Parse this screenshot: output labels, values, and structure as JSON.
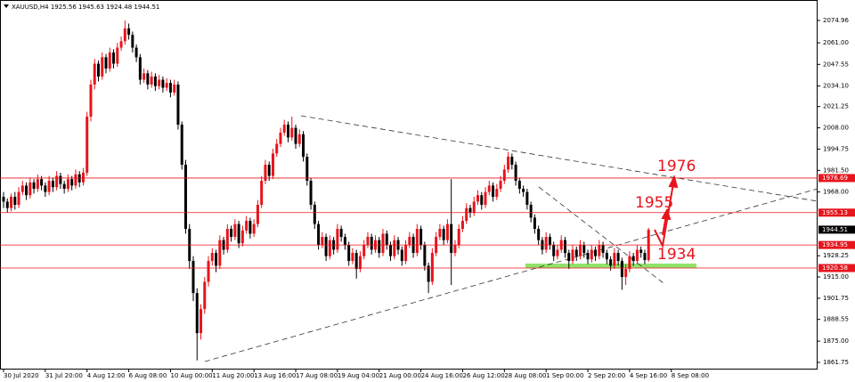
{
  "chart_data": {
    "type": "candlestick",
    "symbol": "XAUUSD,H4",
    "up_color": "#e8141c",
    "down_color": "#000000",
    "ylim": [
      1857.3,
      2087.7
    ],
    "yticks": [
      2074.96,
      {
        "value": 2061,
        "label": "2061.00"
      },
      2047.55,
      {
        "value": 2034.1,
        "label": "2034.10"
      },
      2021.25,
      {
        "value": 2008,
        "label": "2008.00"
      },
      1994.75,
      {
        "value": 1981.5,
        "label": "1981.50"
      },
      {
        "value": 1968,
        "label": "1968.00"
      },
      1928.25,
      {
        "value": 1915,
        "label": "1915.00"
      },
      1901.75,
      1888.55,
      {
        "value": 1875,
        "label": "1875.00"
      },
      1861.75
    ],
    "levels": [
      {
        "value": 1976.69,
        "color": "#e8141c"
      },
      {
        "value": 1955.13,
        "color": "#e8141c"
      },
      {
        "value": 1934.95,
        "color": "#e8141c"
      },
      {
        "value": 1920.58,
        "color": "#e8141c"
      }
    ],
    "annotations": [
      "1976",
      "1955",
      "1934"
    ],
    "categories": [
      "30 Jul 2020",
      null,
      null,
      null,
      null,
      null,
      null,
      null,
      null,
      null,
      null,
      "31 Jul 20:00",
      null,
      null,
      null,
      null,
      null,
      null,
      null,
      null,
      null,
      null,
      "4 Aug 12:00",
      null,
      null,
      null,
      null,
      null,
      null,
      null,
      null,
      null,
      null,
      "6 Aug 08:00",
      null,
      null,
      null,
      null,
      null,
      null,
      null,
      null,
      null,
      null,
      "10 Aug 00:00",
      null,
      null,
      null,
      null,
      null,
      null,
      null,
      null,
      null,
      null,
      "11 Aug 20:00",
      null,
      null,
      null,
      null,
      null,
      null,
      null,
      null,
      null,
      null,
      "13 Aug 16:00",
      null,
      null,
      null,
      null,
      null,
      null,
      null,
      null,
      null,
      null,
      "17 Aug 08:00",
      null,
      null,
      null,
      null,
      null,
      null,
      null,
      null,
      null,
      null,
      "19 Aug 04:00",
      null,
      null,
      null,
      null,
      null,
      null,
      null,
      null,
      null,
      null,
      "21 Aug 00:00",
      null,
      null,
      null,
      null,
      null,
      null,
      null,
      null,
      null,
      null,
      "24 Aug 16:00",
      null,
      null,
      null,
      null,
      null,
      null,
      null,
      null,
      null,
      null,
      "26 Aug 12:00",
      null,
      null,
      null,
      null,
      null,
      null,
      null,
      null,
      null,
      null,
      "28 Aug 08:00",
      null,
      null,
      null,
      null,
      null,
      null,
      null,
      null,
      null,
      null,
      "1 Sep 00:00",
      null,
      null,
      null,
      null,
      null,
      null,
      null,
      null,
      null,
      null,
      "2 Sep 20:00",
      null,
      null,
      null,
      null,
      null,
      null,
      null,
      null,
      null,
      null,
      "4 Sep 16:00",
      null,
      null,
      null,
      null,
      null,
      null,
      null,
      null,
      null,
      null,
      "8 Sep 08:00"
    ],
    "values": [
      [
        1965,
        1968,
        1958,
        1962
      ],
      [
        1962,
        1964,
        1955,
        1958
      ],
      [
        1958,
        1967,
        1956,
        1965
      ],
      [
        1965,
        1968,
        1957,
        1960
      ],
      [
        1960,
        1971,
        1958,
        1968
      ],
      [
        1968,
        1975,
        1966,
        1972
      ],
      [
        1972,
        1974,
        1963,
        1966
      ],
      [
        1966,
        1977,
        1964,
        1974
      ],
      [
        1974,
        1976,
        1967,
        1970
      ],
      [
        1970,
        1979,
        1968,
        1976
      ],
      [
        1976,
        1978,
        1969,
        1972
      ],
      [
        1972,
        1974,
        1965,
        1968
      ],
      [
        1968,
        1978,
        1966,
        1975
      ],
      [
        1975,
        1977,
        1968,
        1971
      ],
      [
        1971,
        1981,
        1969,
        1978
      ],
      [
        1978,
        1980,
        1970,
        1973
      ],
      [
        1973,
        1975,
        1967,
        1970
      ],
      [
        1970,
        1979,
        1968,
        1976
      ],
      [
        1976,
        1978,
        1969,
        1972
      ],
      [
        1972,
        1982,
        1970,
        1979
      ],
      [
        1979,
        1981,
        1971,
        1974
      ],
      [
        1974,
        1983,
        1972,
        1980
      ],
      [
        1980,
        2018,
        1978,
        2015
      ],
      [
        2015,
        2038,
        2012,
        2035
      ],
      [
        2035,
        2051,
        2032,
        2048
      ],
      [
        2048,
        2050,
        2037,
        2040
      ],
      [
        2040,
        2055,
        2038,
        2052
      ],
      [
        2052,
        2054,
        2042,
        2045
      ],
      [
        2045,
        2058,
        2043,
        2055
      ],
      [
        2055,
        2057,
        2045,
        2048
      ],
      [
        2048,
        2061,
        2046,
        2058
      ],
      [
        2058,
        2065,
        2056,
        2062
      ],
      [
        2062,
        2075,
        2060,
        2070
      ],
      [
        2070,
        2073,
        2063,
        2066
      ],
      [
        2066,
        2068,
        2055,
        2058
      ],
      [
        2058,
        2060,
        2049,
        2052
      ],
      [
        2052,
        2054,
        2035,
        2038
      ],
      [
        2038,
        2045,
        2036,
        2042
      ],
      [
        2042,
        2044,
        2032,
        2035
      ],
      [
        2035,
        2043,
        2033,
        2040
      ],
      [
        2040,
        2042,
        2031,
        2034
      ],
      [
        2034,
        2041,
        2032,
        2038
      ],
      [
        2038,
        2040,
        2030,
        2033
      ],
      [
        2033,
        2039,
        2031,
        2036
      ],
      [
        2036,
        2038,
        2027,
        2030
      ],
      [
        2030,
        2038,
        2028,
        2035
      ],
      [
        2035,
        2037,
        2007,
        2010
      ],
      [
        2010,
        2012,
        1982,
        1985
      ],
      [
        1985,
        1988,
        1942,
        1945
      ],
      [
        1945,
        1948,
        1920,
        1925
      ],
      [
        1925,
        1928,
        1900,
        1905
      ],
      [
        1905,
        1908,
        1863,
        1880
      ],
      [
        1880,
        1898,
        1876,
        1895
      ],
      [
        1895,
        1915,
        1892,
        1912
      ],
      [
        1912,
        1928,
        1909,
        1925
      ],
      [
        1925,
        1933,
        1922,
        1930
      ],
      [
        1930,
        1932,
        1918,
        1922
      ],
      [
        1922,
        1941,
        1920,
        1938
      ],
      [
        1938,
        1940,
        1929,
        1932
      ],
      [
        1932,
        1948,
        1930,
        1945
      ],
      [
        1945,
        1947,
        1937,
        1940
      ],
      [
        1940,
        1951,
        1938,
        1948
      ],
      [
        1948,
        1950,
        1933,
        1936
      ],
      [
        1936,
        1947,
        1934,
        1944
      ],
      [
        1944,
        1953,
        1942,
        1950
      ],
      [
        1950,
        1952,
        1939,
        1942
      ],
      [
        1942,
        1951,
        1940,
        1948
      ],
      [
        1948,
        1963,
        1946,
        1960
      ],
      [
        1960,
        1978,
        1958,
        1975
      ],
      [
        1975,
        1988,
        1973,
        1985
      ],
      [
        1985,
        1987,
        1975,
        1978
      ],
      [
        1978,
        1995,
        1976,
        1992
      ],
      [
        1992,
        2001,
        1990,
        1998
      ],
      [
        1998,
        2008,
        1996,
        2005
      ],
      [
        2005,
        2013,
        2003,
        2010
      ],
      [
        2010,
        2012,
        1999,
        2002
      ],
      [
        2002,
        2015,
        2000,
        2008
      ],
      [
        2008,
        2010,
        1995,
        1998
      ],
      [
        1998,
        2007,
        1996,
        2004
      ],
      [
        2004,
        2006,
        1987,
        1990
      ],
      [
        1990,
        1992,
        1972,
        1975
      ],
      [
        1975,
        1977,
        1957,
        1960
      ],
      [
        1960,
        1962,
        1945,
        1948
      ],
      [
        1948,
        1950,
        1932,
        1935
      ],
      [
        1935,
        1943,
        1933,
        1940
      ],
      [
        1940,
        1942,
        1925,
        1928
      ],
      [
        1928,
        1941,
        1926,
        1938
      ],
      [
        1938,
        1940,
        1929,
        1932
      ],
      [
        1932,
        1948,
        1930,
        1945
      ],
      [
        1945,
        1947,
        1937,
        1940
      ],
      [
        1940,
        1942,
        1932,
        1935
      ],
      [
        1935,
        1937,
        1922,
        1925
      ],
      [
        1925,
        1933,
        1923,
        1930
      ],
      [
        1930,
        1932,
        1914,
        1920
      ],
      [
        1920,
        1931,
        1918,
        1928
      ],
      [
        1928,
        1938,
        1926,
        1935
      ],
      [
        1935,
        1943,
        1933,
        1940
      ],
      [
        1940,
        1942,
        1929,
        1932
      ],
      [
        1932,
        1941,
        1930,
        1938
      ],
      [
        1938,
        1940,
        1927,
        1930
      ],
      [
        1930,
        1945,
        1928,
        1942
      ],
      [
        1942,
        1944,
        1932,
        1935
      ],
      [
        1935,
        1937,
        1925,
        1928
      ],
      [
        1928,
        1941,
        1926,
        1938
      ],
      [
        1938,
        1940,
        1929,
        1932
      ],
      [
        1932,
        1934,
        1922,
        1925
      ],
      [
        1925,
        1938,
        1923,
        1935
      ],
      [
        1935,
        1943,
        1933,
        1940
      ],
      [
        1940,
        1942,
        1927,
        1930
      ],
      [
        1930,
        1948,
        1928,
        1945
      ],
      [
        1945,
        1947,
        1932,
        1935
      ],
      [
        1935,
        1937,
        1919,
        1922
      ],
      [
        1922,
        1924,
        1905,
        1912
      ],
      [
        1912,
        1933,
        1910,
        1930
      ],
      [
        1930,
        1943,
        1928,
        1940
      ],
      [
        1940,
        1948,
        1938,
        1945
      ],
      [
        1945,
        1947,
        1935,
        1938
      ],
      [
        1938,
        1951,
        1936,
        1948
      ],
      [
        1948,
        1976,
        1910,
        1930
      ],
      [
        1930,
        1938,
        1928,
        1935
      ],
      [
        1935,
        1948,
        1933,
        1945
      ],
      [
        1945,
        1953,
        1943,
        1950
      ],
      [
        1950,
        1961,
        1948,
        1958
      ],
      [
        1958,
        1960,
        1952,
        1955
      ],
      [
        1955,
        1965,
        1953,
        1962
      ],
      [
        1962,
        1969,
        1960,
        1966
      ],
      [
        1966,
        1968,
        1957,
        1960
      ],
      [
        1960,
        1971,
        1958,
        1968
      ],
      [
        1968,
        1975,
        1966,
        1972
      ],
      [
        1972,
        1974,
        1962,
        1965
      ],
      [
        1965,
        1973,
        1963,
        1970
      ],
      [
        1970,
        1978,
        1968,
        1975
      ],
      [
        1975,
        1985,
        1973,
        1982
      ],
      [
        1982,
        1993,
        1980,
        1990
      ],
      [
        1990,
        1992,
        1982,
        1985
      ],
      [
        1985,
        1987,
        1972,
        1975
      ],
      [
        1975,
        1977,
        1967,
        1970
      ],
      [
        1970,
        1972,
        1965,
        1968
      ],
      [
        1968,
        1970,
        1957,
        1960
      ],
      [
        1960,
        1962,
        1949,
        1952
      ],
      [
        1952,
        1954,
        1942,
        1945
      ],
      [
        1945,
        1947,
        1935,
        1938
      ],
      [
        1938,
        1940,
        1929,
        1932
      ],
      [
        1932,
        1943,
        1930,
        1940
      ],
      [
        1940,
        1942,
        1932,
        1935
      ],
      [
        1935,
        1937,
        1925,
        1928
      ],
      [
        1928,
        1935,
        1926,
        1932
      ],
      [
        1932,
        1941,
        1930,
        1938
      ],
      [
        1938,
        1940,
        1927,
        1930
      ],
      [
        1930,
        1932,
        1920,
        1925
      ],
      [
        1925,
        1935,
        1923,
        1932
      ],
      [
        1932,
        1934,
        1925,
        1928
      ],
      [
        1928,
        1938,
        1926,
        1935
      ],
      [
        1935,
        1937,
        1927,
        1930
      ],
      [
        1930,
        1932,
        1923,
        1926
      ],
      [
        1926,
        1935,
        1924,
        1932
      ],
      [
        1932,
        1934,
        1925,
        1928
      ],
      [
        1928,
        1938,
        1926,
        1935
      ],
      [
        1935,
        1937,
        1927,
        1930
      ],
      [
        1930,
        1932,
        1923,
        1926
      ],
      [
        1926,
        1928,
        1919,
        1922
      ],
      [
        1922,
        1933,
        1920,
        1930
      ],
      [
        1930,
        1932,
        1922,
        1925
      ],
      [
        1925,
        1927,
        1907,
        1915
      ],
      [
        1915,
        1923,
        1910,
        1920
      ],
      [
        1920,
        1931,
        1918,
        1928
      ],
      [
        1928,
        1930,
        1922,
        1925
      ],
      [
        1925,
        1935,
        1923,
        1932
      ],
      [
        1932,
        1934,
        1927,
        1930
      ],
      [
        1930,
        1932,
        1923,
        1925.56
      ],
      [
        1925.56,
        1945.63,
        1924.48,
        1944.51
      ],
      null,
      null,
      null,
      null,
      null,
      null
    ]
  }
}
